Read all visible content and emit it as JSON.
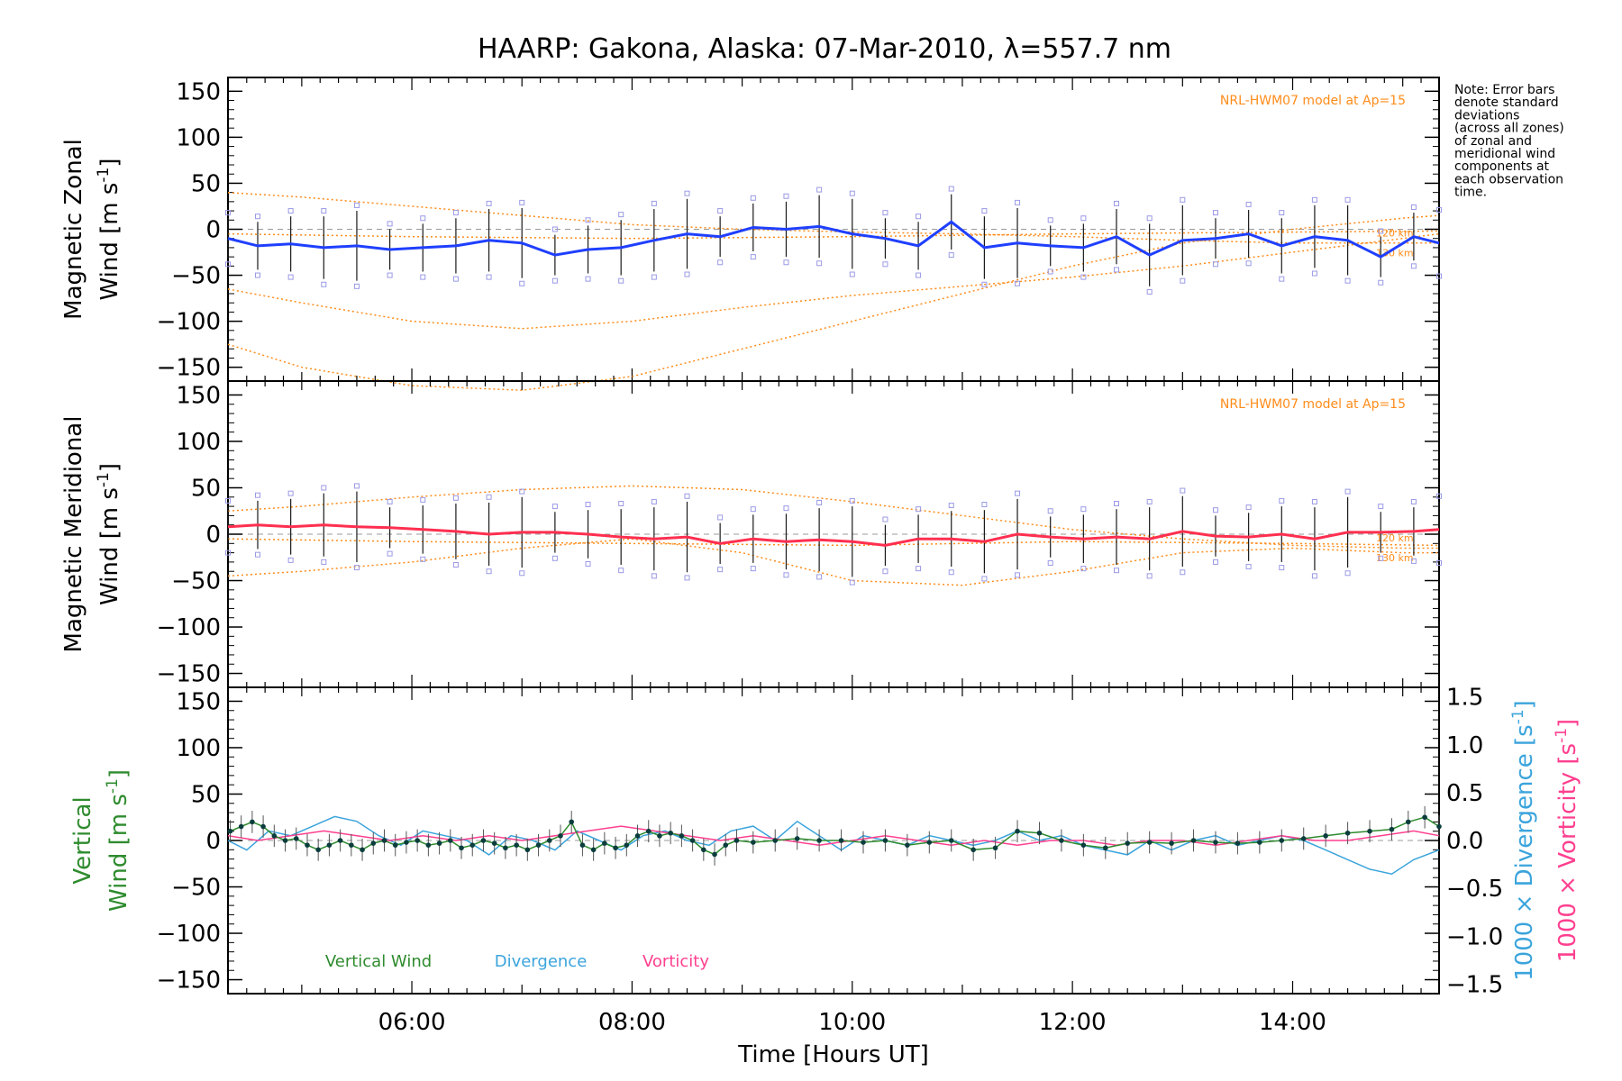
{
  "title": "HAARP: Gakona,  Alaska: 07-Mar-2010, λ=557.7 nm",
  "note_lines": [
    "Note: Error bars",
    "denote standard",
    "deviations",
    "(across all zones)",
    "of zonal and",
    "meridional wind",
    "components at",
    "each observation",
    "time."
  ],
  "colors": {
    "zonal": "#1f3fff",
    "meridional": "#ff2f4f",
    "vertical": "#2e8b2e",
    "divergence": "#3ba4dc",
    "vorticity": "#ff3f8f",
    "model": "#ff8c1a",
    "scatter": "#9a9ae6",
    "errorbar": "#1a1a1a"
  },
  "chart_data": [
    {
      "type": "line",
      "panel": "zonal",
      "ylabel_lines": [
        "Magnetic Zonal",
        "Wind [m s"
      ],
      "ylabel_sup": "-1",
      "ylabel_close": "]",
      "ylim": [
        -165,
        165
      ],
      "xlim": [
        4.33,
        15.33
      ],
      "yticks": [
        -150,
        -100,
        -50,
        0,
        50,
        100,
        150
      ],
      "model_label": "NRL-HWM07 model at Ap=15",
      "model_alt_labels": [
        "120 km",
        "130 km"
      ],
      "series": [
        {
          "x": [
            4.33,
            4.6,
            4.9,
            5.2,
            5.5,
            5.8,
            6.1,
            6.4,
            6.7,
            7.0,
            7.3,
            7.6,
            7.9,
            8.2,
            8.5,
            8.8,
            9.1,
            9.4,
            9.7,
            10.0,
            10.3,
            10.6,
            10.9,
            11.2,
            11.5,
            11.8,
            12.1,
            12.4,
            12.7,
            13.0,
            13.3,
            13.6,
            13.9,
            14.2,
            14.5,
            14.8,
            15.1,
            15.33
          ],
          "y": [
            -10,
            -18,
            -16,
            -20,
            -18,
            -22,
            -20,
            -18,
            -12,
            -15,
            -28,
            -22,
            -20,
            -12,
            -5,
            -8,
            2,
            0,
            3,
            -5,
            -10,
            -18,
            8,
            -20,
            -15,
            -18,
            -20,
            -8,
            -28,
            -12,
            -10,
            -5,
            -18,
            -8,
            -12,
            -30,
            -8,
            -15
          ]
        }
      ],
      "model_curves": [
        {
          "x": [
            4.33,
            5.0,
            6.0,
            7.0,
            8.0,
            9.0,
            10.0,
            11.0,
            12.0,
            13.0,
            14.0,
            15.0,
            15.33
          ],
          "y": [
            40,
            35,
            25,
            15,
            5,
            0,
            -3,
            -5,
            -8,
            -12,
            -15,
            -15,
            -15
          ]
        },
        {
          "x": [
            4.33,
            5.0,
            6.0,
            7.0,
            8.0,
            9.0,
            10.0,
            11.0,
            12.0,
            13.0,
            14.0,
            15.0,
            15.33
          ],
          "y": [
            -65,
            -80,
            -100,
            -108,
            -100,
            -85,
            -72,
            -62,
            -52,
            -40,
            -25,
            -10,
            -5
          ]
        },
        {
          "x": [
            4.33,
            5.0,
            6.0,
            7.0,
            8.0,
            9.0,
            10.0,
            11.0,
            12.0,
            13.0,
            14.0,
            15.0,
            15.33
          ],
          "y": [
            -125,
            -150,
            -170,
            -175,
            -160,
            -130,
            -100,
            -70,
            -40,
            -15,
            0,
            12,
            15
          ]
        },
        {
          "x": [
            4.33,
            6.0,
            8.0,
            10.0,
            12.0,
            14.0,
            15.33
          ],
          "y": [
            -5,
            -8,
            -10,
            -8,
            -5,
            -3,
            -2
          ]
        }
      ]
    },
    {
      "type": "line",
      "panel": "meridional",
      "ylabel_lines": [
        "Magnetic Meridional",
        "Wind [m s"
      ],
      "ylabel_sup": "-1",
      "ylabel_close": "]",
      "ylim": [
        -165,
        165
      ],
      "xlim": [
        4.33,
        15.33
      ],
      "yticks": [
        -150,
        -100,
        -50,
        0,
        50,
        100,
        150
      ],
      "model_label": "NRL-HWM07 model at Ap=15",
      "model_alt_labels": [
        "120 km",
        "130 km"
      ],
      "series": [
        {
          "x": [
            4.33,
            4.6,
            4.9,
            5.2,
            5.5,
            5.8,
            6.1,
            6.4,
            6.7,
            7.0,
            7.3,
            7.6,
            7.9,
            8.2,
            8.5,
            8.8,
            9.1,
            9.4,
            9.7,
            10.0,
            10.3,
            10.6,
            10.9,
            11.2,
            11.5,
            11.8,
            12.1,
            12.4,
            12.7,
            13.0,
            13.3,
            13.6,
            13.9,
            14.2,
            14.5,
            14.8,
            15.1,
            15.33
          ],
          "y": [
            8,
            10,
            8,
            10,
            8,
            7,
            5,
            3,
            0,
            2,
            2,
            0,
            -3,
            -5,
            -3,
            -10,
            -5,
            -8,
            -6,
            -8,
            -12,
            -5,
            -5,
            -8,
            0,
            -3,
            -5,
            -3,
            -5,
            3,
            -2,
            -3,
            0,
            -5,
            2,
            2,
            3,
            5
          ]
        }
      ],
      "model_curves": [
        {
          "x": [
            4.33,
            5.0,
            6.0,
            7.0,
            8.0,
            9.0,
            10.0,
            11.0,
            12.0,
            13.0,
            14.0,
            15.0,
            15.33
          ],
          "y": [
            25,
            30,
            40,
            48,
            52,
            48,
            35,
            20,
            5,
            -5,
            -12,
            -15,
            -15
          ]
        },
        {
          "x": [
            4.33,
            5.0,
            6.0,
            7.0,
            8.0,
            9.0,
            10.0,
            11.0,
            12.0,
            13.0,
            14.0,
            15.0,
            15.33
          ],
          "y": [
            -45,
            -40,
            -30,
            -15,
            -5,
            -20,
            -50,
            -55,
            -40,
            -20,
            -15,
            -20,
            -20
          ]
        },
        {
          "x": [
            4.33,
            6.0,
            8.0,
            10.0,
            12.0,
            14.0,
            15.33
          ],
          "y": [
            -5,
            -8,
            -10,
            -12,
            -8,
            -10,
            -12
          ]
        }
      ]
    },
    {
      "type": "line",
      "panel": "vertical",
      "ylabel_lines": [
        "Vertical",
        "Wind [m s"
      ],
      "ylabel_sup": "-1",
      "ylabel_close": "]",
      "ylim": [
        -165,
        165
      ],
      "xlim": [
        4.33,
        15.33
      ],
      "yticks": [
        -150,
        -100,
        -50,
        0,
        50,
        100,
        150
      ],
      "xticks": [
        "06:00",
        "08:00",
        "10:00",
        "12:00",
        "14:00"
      ],
      "xtick_values": [
        6,
        8,
        10,
        12,
        14
      ],
      "xlabel": "Time [Hours UT]",
      "y2lim": [
        -1.6,
        1.6
      ],
      "y2ticks": [
        "-1.5",
        "-1.0",
        "-0.5",
        "0.0",
        "0.5",
        "1.0",
        "1.5"
      ],
      "y2tick_values": [
        -1.5,
        -1.0,
        -0.5,
        0.0,
        0.5,
        1.0,
        1.5
      ],
      "y2label_a": "1000 × Divergence [s",
      "y2label_b": "1000 × Vorticity [s",
      "y2label_sup": "-1",
      "y2label_close": "]",
      "legend": [
        "Vertical Wind",
        "Divergence",
        "Vorticity"
      ],
      "series": [
        {
          "name": "Vertical Wind",
          "x": [
            4.35,
            4.45,
            4.55,
            4.65,
            4.75,
            4.85,
            4.95,
            5.05,
            5.15,
            5.25,
            5.35,
            5.45,
            5.55,
            5.65,
            5.75,
            5.85,
            5.95,
            6.05,
            6.15,
            6.25,
            6.35,
            6.45,
            6.55,
            6.65,
            6.75,
            6.85,
            6.95,
            7.05,
            7.15,
            7.25,
            7.35,
            7.45,
            7.55,
            7.65,
            7.75,
            7.85,
            7.95,
            8.05,
            8.15,
            8.25,
            8.35,
            8.45,
            8.55,
            8.65,
            8.75,
            8.85,
            8.95,
            9.1,
            9.3,
            9.5,
            9.7,
            9.9,
            10.1,
            10.3,
            10.5,
            10.7,
            10.9,
            11.1,
            11.3,
            11.5,
            11.7,
            11.9,
            12.1,
            12.3,
            12.5,
            12.7,
            12.9,
            13.1,
            13.3,
            13.5,
            13.7,
            13.9,
            14.1,
            14.3,
            14.5,
            14.7,
            14.9,
            15.05,
            15.2,
            15.33
          ],
          "y": [
            10,
            15,
            20,
            15,
            5,
            0,
            2,
            -5,
            -10,
            -5,
            0,
            -5,
            -10,
            -3,
            0,
            -5,
            -2,
            0,
            -5,
            -3,
            0,
            -8,
            -5,
            0,
            -3,
            -8,
            -5,
            -10,
            -5,
            0,
            5,
            20,
            -5,
            -10,
            -3,
            -8,
            -5,
            5,
            10,
            5,
            8,
            5,
            0,
            -10,
            -15,
            -5,
            0,
            -2,
            0,
            2,
            0,
            0,
            -2,
            0,
            -5,
            -2,
            0,
            -10,
            -8,
            10,
            8,
            0,
            -5,
            -8,
            -3,
            -2,
            -3,
            0,
            -2,
            -3,
            -2,
            0,
            2,
            5,
            8,
            10,
            12,
            20,
            25,
            15
          ]
        },
        {
          "name": "Divergence",
          "x": [
            4.33,
            4.5,
            4.7,
            4.9,
            5.1,
            5.3,
            5.5,
            5.7,
            5.9,
            6.1,
            6.3,
            6.5,
            6.7,
            6.9,
            7.1,
            7.3,
            7.5,
            7.7,
            7.9,
            8.1,
            8.3,
            8.5,
            8.7,
            8.9,
            9.1,
            9.3,
            9.5,
            9.7,
            9.9,
            10.1,
            10.3,
            10.5,
            10.7,
            10.9,
            11.1,
            11.3,
            11.5,
            11.7,
            11.9,
            12.1,
            12.3,
            12.5,
            12.7,
            12.9,
            13.1,
            13.3,
            13.5,
            13.7,
            13.9,
            14.1,
            14.3,
            14.5,
            14.7,
            14.9,
            15.1,
            15.33
          ],
          "y": [
            0.0,
            -0.1,
            0.1,
            0.05,
            0.15,
            0.25,
            0.2,
            0.05,
            -0.05,
            0.1,
            0.05,
            0.0,
            -0.15,
            0.05,
            0.0,
            -0.1,
            0.1,
            0.0,
            -0.1,
            0.05,
            0.1,
            0.0,
            -0.05,
            0.1,
            0.15,
            0.0,
            0.2,
            0.05,
            -0.1,
            0.05,
            0.0,
            -0.05,
            0.05,
            0.0,
            -0.05,
            0.0,
            0.1,
            0.0,
            0.05,
            -0.05,
            -0.1,
            -0.15,
            0.0,
            -0.1,
            0.0,
            0.05,
            -0.05,
            0.0,
            0.05,
            0.0,
            -0.1,
            -0.2,
            -0.3,
            -0.35,
            -0.2,
            -0.1
          ]
        },
        {
          "name": "Vorticity",
          "x": [
            4.33,
            4.6,
            4.9,
            5.2,
            5.5,
            5.8,
            6.1,
            6.4,
            6.7,
            7.0,
            7.3,
            7.6,
            7.9,
            8.2,
            8.5,
            8.8,
            9.1,
            9.4,
            9.7,
            10.0,
            10.3,
            10.6,
            10.9,
            11.2,
            11.5,
            11.8,
            12.1,
            12.4,
            12.7,
            13.0,
            13.3,
            13.6,
            13.9,
            14.2,
            14.5,
            14.8,
            15.1,
            15.33
          ],
          "y": [
            0.05,
            0.0,
            0.05,
            0.1,
            0.05,
            0.0,
            0.05,
            0.0,
            0.05,
            0.0,
            0.05,
            0.1,
            0.15,
            0.1,
            0.05,
            0.0,
            0.05,
            0.0,
            -0.05,
            0.0,
            0.05,
            0.0,
            -0.05,
            0.0,
            -0.05,
            0.0,
            0.0,
            -0.05,
            0.0,
            0.0,
            -0.05,
            0.0,
            0.05,
            0.0,
            0.0,
            0.05,
            0.1,
            0.05
          ]
        }
      ]
    }
  ]
}
